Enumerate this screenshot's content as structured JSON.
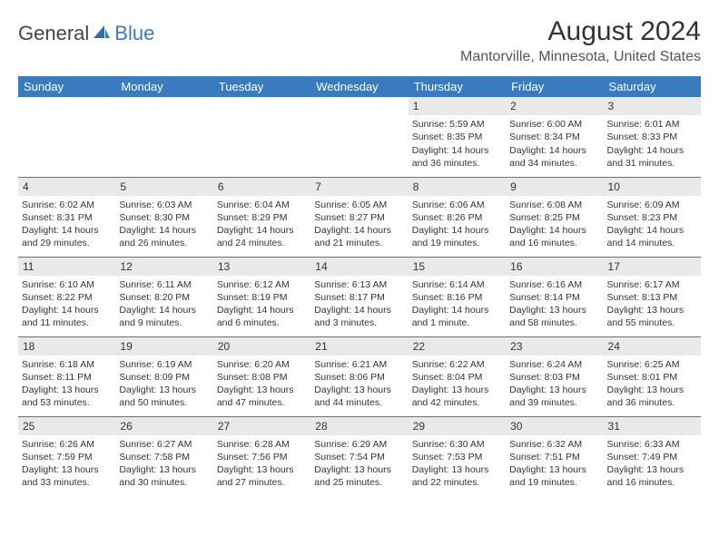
{
  "logo": {
    "text1": "General",
    "text2": "Blue"
  },
  "title": "August 2024",
  "location": "Mantorville, Minnesota, United States",
  "colors": {
    "header_bg": "#3a7bbf",
    "header_text": "#ffffff",
    "day_num_bg": "#e9e9e9",
    "border": "#3a7bbf",
    "text": "#333333"
  },
  "typography": {
    "title_fontsize": 30,
    "location_fontsize": 16,
    "header_fontsize": 13,
    "cell_fontsize": 10.5
  },
  "days_of_week": [
    "Sunday",
    "Monday",
    "Tuesday",
    "Wednesday",
    "Thursday",
    "Friday",
    "Saturday"
  ],
  "weeks": [
    [
      null,
      null,
      null,
      null,
      {
        "n": "1",
        "sr": "Sunrise: 5:59 AM",
        "ss": "Sunset: 8:35 PM",
        "d1": "Daylight: 14 hours",
        "d2": "and 36 minutes."
      },
      {
        "n": "2",
        "sr": "Sunrise: 6:00 AM",
        "ss": "Sunset: 8:34 PM",
        "d1": "Daylight: 14 hours",
        "d2": "and 34 minutes."
      },
      {
        "n": "3",
        "sr": "Sunrise: 6:01 AM",
        "ss": "Sunset: 8:33 PM",
        "d1": "Daylight: 14 hours",
        "d2": "and 31 minutes."
      }
    ],
    [
      {
        "n": "4",
        "sr": "Sunrise: 6:02 AM",
        "ss": "Sunset: 8:31 PM",
        "d1": "Daylight: 14 hours",
        "d2": "and 29 minutes."
      },
      {
        "n": "5",
        "sr": "Sunrise: 6:03 AM",
        "ss": "Sunset: 8:30 PM",
        "d1": "Daylight: 14 hours",
        "d2": "and 26 minutes."
      },
      {
        "n": "6",
        "sr": "Sunrise: 6:04 AM",
        "ss": "Sunset: 8:29 PM",
        "d1": "Daylight: 14 hours",
        "d2": "and 24 minutes."
      },
      {
        "n": "7",
        "sr": "Sunrise: 6:05 AM",
        "ss": "Sunset: 8:27 PM",
        "d1": "Daylight: 14 hours",
        "d2": "and 21 minutes."
      },
      {
        "n": "8",
        "sr": "Sunrise: 6:06 AM",
        "ss": "Sunset: 8:26 PM",
        "d1": "Daylight: 14 hours",
        "d2": "and 19 minutes."
      },
      {
        "n": "9",
        "sr": "Sunrise: 6:08 AM",
        "ss": "Sunset: 8:25 PM",
        "d1": "Daylight: 14 hours",
        "d2": "and 16 minutes."
      },
      {
        "n": "10",
        "sr": "Sunrise: 6:09 AM",
        "ss": "Sunset: 8:23 PM",
        "d1": "Daylight: 14 hours",
        "d2": "and 14 minutes."
      }
    ],
    [
      {
        "n": "11",
        "sr": "Sunrise: 6:10 AM",
        "ss": "Sunset: 8:22 PM",
        "d1": "Daylight: 14 hours",
        "d2": "and 11 minutes."
      },
      {
        "n": "12",
        "sr": "Sunrise: 6:11 AM",
        "ss": "Sunset: 8:20 PM",
        "d1": "Daylight: 14 hours",
        "d2": "and 9 minutes."
      },
      {
        "n": "13",
        "sr": "Sunrise: 6:12 AM",
        "ss": "Sunset: 8:19 PM",
        "d1": "Daylight: 14 hours",
        "d2": "and 6 minutes."
      },
      {
        "n": "14",
        "sr": "Sunrise: 6:13 AM",
        "ss": "Sunset: 8:17 PM",
        "d1": "Daylight: 14 hours",
        "d2": "and 3 minutes."
      },
      {
        "n": "15",
        "sr": "Sunrise: 6:14 AM",
        "ss": "Sunset: 8:16 PM",
        "d1": "Daylight: 14 hours",
        "d2": "and 1 minute."
      },
      {
        "n": "16",
        "sr": "Sunrise: 6:16 AM",
        "ss": "Sunset: 8:14 PM",
        "d1": "Daylight: 13 hours",
        "d2": "and 58 minutes."
      },
      {
        "n": "17",
        "sr": "Sunrise: 6:17 AM",
        "ss": "Sunset: 8:13 PM",
        "d1": "Daylight: 13 hours",
        "d2": "and 55 minutes."
      }
    ],
    [
      {
        "n": "18",
        "sr": "Sunrise: 6:18 AM",
        "ss": "Sunset: 8:11 PM",
        "d1": "Daylight: 13 hours",
        "d2": "and 53 minutes."
      },
      {
        "n": "19",
        "sr": "Sunrise: 6:19 AM",
        "ss": "Sunset: 8:09 PM",
        "d1": "Daylight: 13 hours",
        "d2": "and 50 minutes."
      },
      {
        "n": "20",
        "sr": "Sunrise: 6:20 AM",
        "ss": "Sunset: 8:08 PM",
        "d1": "Daylight: 13 hours",
        "d2": "and 47 minutes."
      },
      {
        "n": "21",
        "sr": "Sunrise: 6:21 AM",
        "ss": "Sunset: 8:06 PM",
        "d1": "Daylight: 13 hours",
        "d2": "and 44 minutes."
      },
      {
        "n": "22",
        "sr": "Sunrise: 6:22 AM",
        "ss": "Sunset: 8:04 PM",
        "d1": "Daylight: 13 hours",
        "d2": "and 42 minutes."
      },
      {
        "n": "23",
        "sr": "Sunrise: 6:24 AM",
        "ss": "Sunset: 8:03 PM",
        "d1": "Daylight: 13 hours",
        "d2": "and 39 minutes."
      },
      {
        "n": "24",
        "sr": "Sunrise: 6:25 AM",
        "ss": "Sunset: 8:01 PM",
        "d1": "Daylight: 13 hours",
        "d2": "and 36 minutes."
      }
    ],
    [
      {
        "n": "25",
        "sr": "Sunrise: 6:26 AM",
        "ss": "Sunset: 7:59 PM",
        "d1": "Daylight: 13 hours",
        "d2": "and 33 minutes."
      },
      {
        "n": "26",
        "sr": "Sunrise: 6:27 AM",
        "ss": "Sunset: 7:58 PM",
        "d1": "Daylight: 13 hours",
        "d2": "and 30 minutes."
      },
      {
        "n": "27",
        "sr": "Sunrise: 6:28 AM",
        "ss": "Sunset: 7:56 PM",
        "d1": "Daylight: 13 hours",
        "d2": "and 27 minutes."
      },
      {
        "n": "28",
        "sr": "Sunrise: 6:29 AM",
        "ss": "Sunset: 7:54 PM",
        "d1": "Daylight: 13 hours",
        "d2": "and 25 minutes."
      },
      {
        "n": "29",
        "sr": "Sunrise: 6:30 AM",
        "ss": "Sunset: 7:53 PM",
        "d1": "Daylight: 13 hours",
        "d2": "and 22 minutes."
      },
      {
        "n": "30",
        "sr": "Sunrise: 6:32 AM",
        "ss": "Sunset: 7:51 PM",
        "d1": "Daylight: 13 hours",
        "d2": "and 19 minutes."
      },
      {
        "n": "31",
        "sr": "Sunrise: 6:33 AM",
        "ss": "Sunset: 7:49 PM",
        "d1": "Daylight: 13 hours",
        "d2": "and 16 minutes."
      }
    ]
  ]
}
